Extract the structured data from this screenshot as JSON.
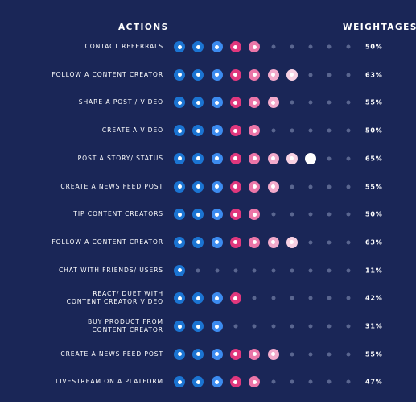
{
  "headers": {
    "actions": "ACTIONS",
    "weightages": "WEIGHTAGES"
  },
  "dot_colors": [
    "#1b74d2",
    "#1b74d2",
    "#3c8bef",
    "#e0377d",
    "#eb76a8",
    "#f2aacb",
    "#f8d1e3",
    "#ffffff"
  ],
  "empty_dot_color": "#5a6690",
  "max_dots": 10,
  "rows": [
    {
      "label": "CONTACT REFERRALS",
      "filled": 5,
      "percent": "50%"
    },
    {
      "label": "FOLLOW A CONTENT CREATOR",
      "filled": 7,
      "percent": "63%"
    },
    {
      "label": "SHARE A POST / VIDEO",
      "filled": 6,
      "percent": "55%"
    },
    {
      "label": "CREATE A VIDEO",
      "filled": 5,
      "percent": "50%"
    },
    {
      "label": "POST A STORY/ STATUS",
      "filled": 8,
      "percent": "65%"
    },
    {
      "label": "CREATE A NEWS FEED POST",
      "filled": 6,
      "percent": "55%"
    },
    {
      "label": "TIP CONTENT CREATORS",
      "filled": 5,
      "percent": "50%"
    },
    {
      "label": "FOLLOW A CONTENT CREATOR",
      "filled": 7,
      "percent": "63%"
    },
    {
      "label": "CHAT WITH FRIENDS/ USERS",
      "filled": 1,
      "percent": "11%"
    },
    {
      "label": "REACT/ DUET WITH\nCONTENT CREATOR VIDEO",
      "filled": 4,
      "percent": "42%"
    },
    {
      "label": "BUY PRODUCT FROM\nCONTENT CREATOR",
      "filled": 3,
      "percent": "31%"
    },
    {
      "label": "CREATE A NEWS FEED POST",
      "filled": 6,
      "percent": "55%"
    },
    {
      "label": "LIVESTREAM ON A PLATFORM",
      "filled": 5,
      "percent": "47%"
    }
  ]
}
